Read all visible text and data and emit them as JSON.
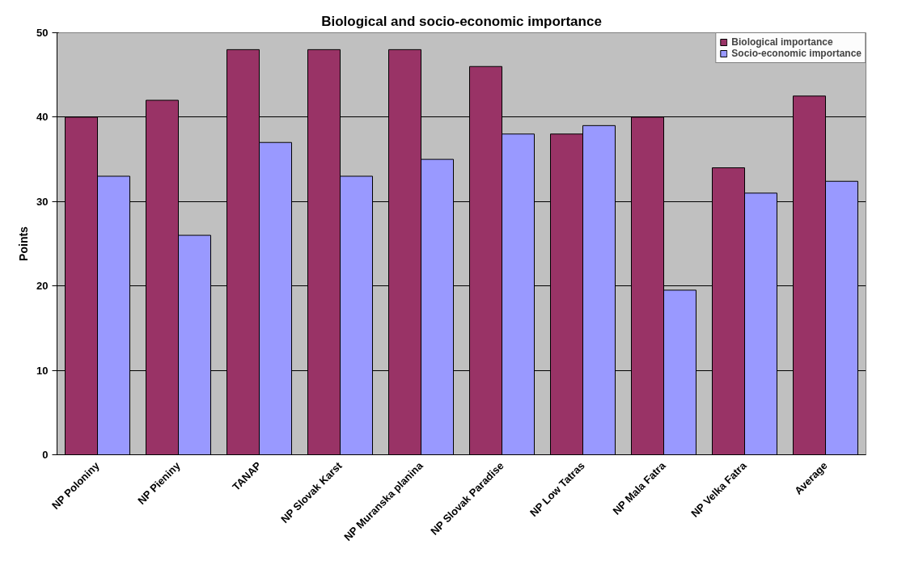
{
  "chart_data": {
    "type": "bar",
    "title": "Biological and socio-economic importance",
    "ylabel": "Points",
    "categories": [
      "NP Poloniny",
      "NP Pieniny",
      "TANAP",
      "NP Slovak Karst",
      "NP Muranska planina",
      "NP Slovak Paradise",
      "NP Low Tatras",
      "NP Mala Fatra",
      "NP Velka Fatra",
      "Average"
    ],
    "series": [
      {
        "name": "Biological importance",
        "color": "#993366",
        "values": [
          40,
          42,
          48,
          48,
          48,
          46,
          38,
          40,
          34,
          42.5
        ]
      },
      {
        "name": "Socio-economic importance",
        "color": "#9999ff",
        "values": [
          33,
          26,
          37,
          33,
          35,
          38,
          39,
          19.5,
          31,
          32.4
        ]
      }
    ],
    "ylim": [
      0,
      50
    ],
    "yticks": [
      0,
      10,
      20,
      30,
      40,
      50
    ],
    "grid": "y",
    "legend": "top right"
  }
}
